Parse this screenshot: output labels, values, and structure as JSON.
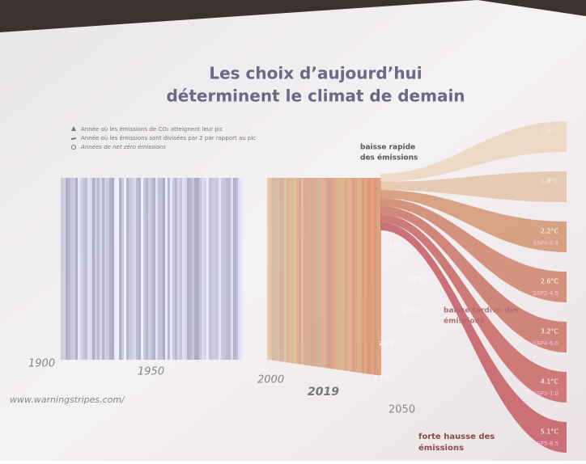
{
  "title": [
    "Les choix d’aujourd’hui",
    "déterminent le climat de demain"
  ],
  "legend": [
    "Année où les émissions de CO₂ atteignent leur pic",
    "Année où les émissions sont divisées par 2 par rapport au pic",
    "Années de net zéro émissions"
  ],
  "axis_labels": [
    "1900",
    "1950",
    "2000",
    "2019",
    "2050"
  ],
  "scenario_groups": [
    [
      "baisse rapide",
      "des émissions"
    ],
    [
      "baisse tardive des",
      "émissions"
    ],
    [
      "forte hausse des",
      "émissions"
    ]
  ],
  "branches": [
    {
      "temp": "1.5°C"
    },
    {
      "temp": "1.8°C"
    },
    {
      "temp": "2.2°C",
      "code": "SSP4-3.4"
    },
    {
      "temp": "2.6°C",
      "code": "SSP2-4.5"
    },
    {
      "temp": "3.2°C",
      "code": "SSP4-6.0"
    },
    {
      "temp": "4.1°C",
      "code": "SSP3-7.0"
    },
    {
      "temp": "5.1°C",
      "code": "SSP5-8.5"
    }
  ],
  "mid_labels": [
    "1.9°C",
    "2.0°C",
    "2.1°C",
    "2.2°C",
    "2.5°C"
  ],
  "source": "www.warningstripes.com/"
}
